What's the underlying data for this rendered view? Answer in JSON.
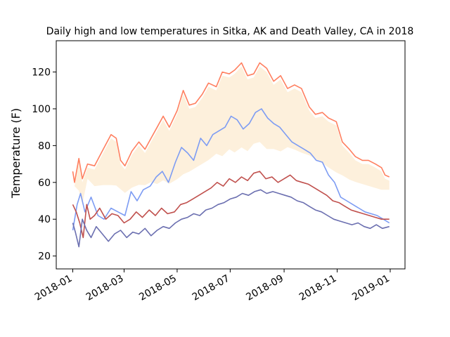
{
  "chart_data": {
    "type": "line",
    "title": "Daily high and low temperatures in Sitka, AK and Death Valley, CA in 2018",
    "xlabel": "",
    "ylabel": "Temperature (F)",
    "xlim": [
      "2017-12-13",
      "2019-01-18"
    ],
    "ylim": [
      13,
      137
    ],
    "grid": false,
    "legend": "none",
    "x_ticks": [
      "2018-01",
      "2018-03",
      "2018-05",
      "2018-07",
      "2018-09",
      "2018-11",
      "2019-01"
    ],
    "y_ticks": [
      20,
      40,
      60,
      80,
      100,
      120
    ],
    "fill_between": {
      "between": [
        "Death Valley high",
        "Death Valley low"
      ],
      "color": "#fdf0dc"
    },
    "series": [
      {
        "color": "#ff7f5f",
        "style": "line",
        "points": [
          [
            "2018-01-01",
            66
          ],
          [
            "2018-01-03",
            60
          ],
          [
            "2018-01-08",
            73
          ],
          [
            "2018-01-12",
            62
          ],
          [
            "2018-01-18",
            70
          ],
          [
            "2018-01-26",
            69
          ],
          [
            "2018-02-05",
            78
          ],
          [
            "2018-02-14",
            86
          ],
          [
            "2018-02-20",
            84
          ],
          [
            "2018-02-25",
            72
          ],
          [
            "2018-03-02",
            69
          ],
          [
            "2018-03-10",
            77
          ],
          [
            "2018-03-18",
            82
          ],
          [
            "2018-03-25",
            78
          ],
          [
            "2018-04-01",
            84
          ],
          [
            "2018-04-08",
            90
          ],
          [
            "2018-04-15",
            96
          ],
          [
            "2018-04-22",
            90
          ],
          [
            "2018-05-01",
            99
          ],
          [
            "2018-05-08",
            110
          ],
          [
            "2018-05-15",
            102
          ],
          [
            "2018-05-22",
            103
          ],
          [
            "2018-05-30",
            108
          ],
          [
            "2018-06-06",
            114
          ],
          [
            "2018-06-15",
            112
          ],
          [
            "2018-06-22",
            120
          ],
          [
            "2018-06-30",
            119
          ],
          [
            "2018-07-06",
            121
          ],
          [
            "2018-07-14",
            125
          ],
          [
            "2018-07-21",
            118
          ],
          [
            "2018-07-28",
            119
          ],
          [
            "2018-08-04",
            125
          ],
          [
            "2018-08-12",
            122
          ],
          [
            "2018-08-20",
            115
          ],
          [
            "2018-08-28",
            118
          ],
          [
            "2018-09-05",
            111
          ],
          [
            "2018-09-13",
            113
          ],
          [
            "2018-09-21",
            111
          ],
          [
            "2018-09-30",
            101
          ],
          [
            "2018-10-07",
            97
          ],
          [
            "2018-10-15",
            98
          ],
          [
            "2018-10-22",
            95
          ],
          [
            "2018-10-31",
            93
          ],
          [
            "2018-11-07",
            82
          ],
          [
            "2018-11-15",
            78
          ],
          [
            "2018-11-22",
            74
          ],
          [
            "2018-11-30",
            72
          ],
          [
            "2018-12-07",
            72
          ],
          [
            "2018-12-15",
            70
          ],
          [
            "2018-12-22",
            68
          ],
          [
            "2018-12-26",
            64
          ],
          [
            "2018-12-31",
            63
          ]
        ]
      },
      {
        "color": "#7d9cf3",
        "style": "line",
        "points": [
          [
            "2018-01-01",
            34
          ],
          [
            "2018-01-06",
            48
          ],
          [
            "2018-01-10",
            54
          ],
          [
            "2018-01-15",
            44
          ],
          [
            "2018-01-22",
            52
          ],
          [
            "2018-01-30",
            42
          ],
          [
            "2018-02-06",
            40
          ],
          [
            "2018-02-14",
            46
          ],
          [
            "2018-02-22",
            44
          ],
          [
            "2018-03-02",
            42
          ],
          [
            "2018-03-09",
            55
          ],
          [
            "2018-03-16",
            50
          ],
          [
            "2018-03-23",
            56
          ],
          [
            "2018-03-31",
            58
          ],
          [
            "2018-04-07",
            63
          ],
          [
            "2018-04-14",
            66
          ],
          [
            "2018-04-21",
            60
          ],
          [
            "2018-04-29",
            71
          ],
          [
            "2018-05-06",
            79
          ],
          [
            "2018-05-13",
            76
          ],
          [
            "2018-05-20",
            72
          ],
          [
            "2018-05-28",
            84
          ],
          [
            "2018-06-04",
            80
          ],
          [
            "2018-06-11",
            86
          ],
          [
            "2018-06-18",
            88
          ],
          [
            "2018-06-25",
            90
          ],
          [
            "2018-07-02",
            96
          ],
          [
            "2018-07-09",
            94
          ],
          [
            "2018-07-16",
            89
          ],
          [
            "2018-07-23",
            92
          ],
          [
            "2018-07-30",
            98
          ],
          [
            "2018-08-06",
            100
          ],
          [
            "2018-08-13",
            95
          ],
          [
            "2018-08-20",
            92
          ],
          [
            "2018-08-27",
            90
          ],
          [
            "2018-09-03",
            86
          ],
          [
            "2018-09-10",
            82
          ],
          [
            "2018-09-17",
            80
          ],
          [
            "2018-09-24",
            78
          ],
          [
            "2018-10-01",
            76
          ],
          [
            "2018-10-08",
            72
          ],
          [
            "2018-10-15",
            71
          ],
          [
            "2018-10-22",
            64
          ],
          [
            "2018-10-29",
            60
          ],
          [
            "2018-11-05",
            52
          ],
          [
            "2018-11-12",
            50
          ],
          [
            "2018-11-19",
            48
          ],
          [
            "2018-11-26",
            46
          ],
          [
            "2018-12-03",
            44
          ],
          [
            "2018-12-10",
            43
          ],
          [
            "2018-12-17",
            42
          ],
          [
            "2018-12-24",
            40
          ],
          [
            "2018-12-31",
            38
          ]
        ]
      },
      {
        "color": "#c0504d",
        "style": "line",
        "points": [
          [
            "2018-01-01",
            48
          ],
          [
            "2018-01-05",
            44
          ],
          [
            "2018-01-09",
            38
          ],
          [
            "2018-01-13",
            30
          ],
          [
            "2018-01-17",
            48
          ],
          [
            "2018-01-21",
            40
          ],
          [
            "2018-01-26",
            42
          ],
          [
            "2018-02-01",
            46
          ],
          [
            "2018-02-08",
            40
          ],
          [
            "2018-02-15",
            43
          ],
          [
            "2018-02-22",
            42
          ],
          [
            "2018-03-01",
            38
          ],
          [
            "2018-03-08",
            40
          ],
          [
            "2018-03-15",
            44
          ],
          [
            "2018-03-22",
            41
          ],
          [
            "2018-03-30",
            45
          ],
          [
            "2018-04-06",
            42
          ],
          [
            "2018-04-13",
            46
          ],
          [
            "2018-04-20",
            43
          ],
          [
            "2018-04-28",
            44
          ],
          [
            "2018-05-05",
            48
          ],
          [
            "2018-05-12",
            49
          ],
          [
            "2018-05-19",
            51
          ],
          [
            "2018-05-26",
            53
          ],
          [
            "2018-06-02",
            55
          ],
          [
            "2018-06-09",
            57
          ],
          [
            "2018-06-16",
            60
          ],
          [
            "2018-06-23",
            58
          ],
          [
            "2018-06-30",
            62
          ],
          [
            "2018-07-07",
            60
          ],
          [
            "2018-07-14",
            63
          ],
          [
            "2018-07-21",
            61
          ],
          [
            "2018-07-28",
            65
          ],
          [
            "2018-08-04",
            66
          ],
          [
            "2018-08-11",
            62
          ],
          [
            "2018-08-18",
            63
          ],
          [
            "2018-08-25",
            60
          ],
          [
            "2018-09-01",
            62
          ],
          [
            "2018-09-08",
            64
          ],
          [
            "2018-09-15",
            61
          ],
          [
            "2018-09-22",
            60
          ],
          [
            "2018-09-29",
            59
          ],
          [
            "2018-10-06",
            57
          ],
          [
            "2018-10-13",
            55
          ],
          [
            "2018-10-20",
            53
          ],
          [
            "2018-10-27",
            50
          ],
          [
            "2018-11-03",
            49
          ],
          [
            "2018-11-10",
            47
          ],
          [
            "2018-11-17",
            45
          ],
          [
            "2018-11-24",
            44
          ],
          [
            "2018-12-01",
            43
          ],
          [
            "2018-12-08",
            42
          ],
          [
            "2018-12-15",
            41
          ],
          [
            "2018-12-22",
            40
          ],
          [
            "2018-12-31",
            40
          ]
        ]
      },
      {
        "color": "#6b6fb0",
        "style": "line",
        "points": [
          [
            "2018-01-01",
            38
          ],
          [
            "2018-01-04",
            33
          ],
          [
            "2018-01-08",
            25
          ],
          [
            "2018-01-12",
            40
          ],
          [
            "2018-01-17",
            34
          ],
          [
            "2018-01-22",
            30
          ],
          [
            "2018-01-28",
            36
          ],
          [
            "2018-02-04",
            32
          ],
          [
            "2018-02-11",
            28
          ],
          [
            "2018-02-18",
            32
          ],
          [
            "2018-02-25",
            34
          ],
          [
            "2018-03-04",
            30
          ],
          [
            "2018-03-11",
            33
          ],
          [
            "2018-03-18",
            32
          ],
          [
            "2018-03-25",
            35
          ],
          [
            "2018-04-01",
            31
          ],
          [
            "2018-04-08",
            34
          ],
          [
            "2018-04-15",
            36
          ],
          [
            "2018-04-22",
            35
          ],
          [
            "2018-04-29",
            38
          ],
          [
            "2018-05-06",
            40
          ],
          [
            "2018-05-13",
            41
          ],
          [
            "2018-05-20",
            43
          ],
          [
            "2018-05-27",
            42
          ],
          [
            "2018-06-03",
            45
          ],
          [
            "2018-06-10",
            46
          ],
          [
            "2018-06-17",
            48
          ],
          [
            "2018-06-24",
            49
          ],
          [
            "2018-07-01",
            51
          ],
          [
            "2018-07-08",
            52
          ],
          [
            "2018-07-15",
            54
          ],
          [
            "2018-07-22",
            53
          ],
          [
            "2018-07-29",
            55
          ],
          [
            "2018-08-05",
            56
          ],
          [
            "2018-08-12",
            54
          ],
          [
            "2018-08-19",
            55
          ],
          [
            "2018-08-26",
            54
          ],
          [
            "2018-09-02",
            53
          ],
          [
            "2018-09-09",
            52
          ],
          [
            "2018-09-16",
            50
          ],
          [
            "2018-09-23",
            49
          ],
          [
            "2018-09-30",
            47
          ],
          [
            "2018-10-07",
            45
          ],
          [
            "2018-10-14",
            44
          ],
          [
            "2018-10-21",
            42
          ],
          [
            "2018-10-28",
            40
          ],
          [
            "2018-11-04",
            39
          ],
          [
            "2018-11-11",
            38
          ],
          [
            "2018-11-18",
            37
          ],
          [
            "2018-11-25",
            38
          ],
          [
            "2018-12-02",
            36
          ],
          [
            "2018-12-09",
            35
          ],
          [
            "2018-12-16",
            37
          ],
          [
            "2018-12-23",
            35
          ],
          [
            "2018-12-31",
            36
          ]
        ]
      }
    ]
  }
}
